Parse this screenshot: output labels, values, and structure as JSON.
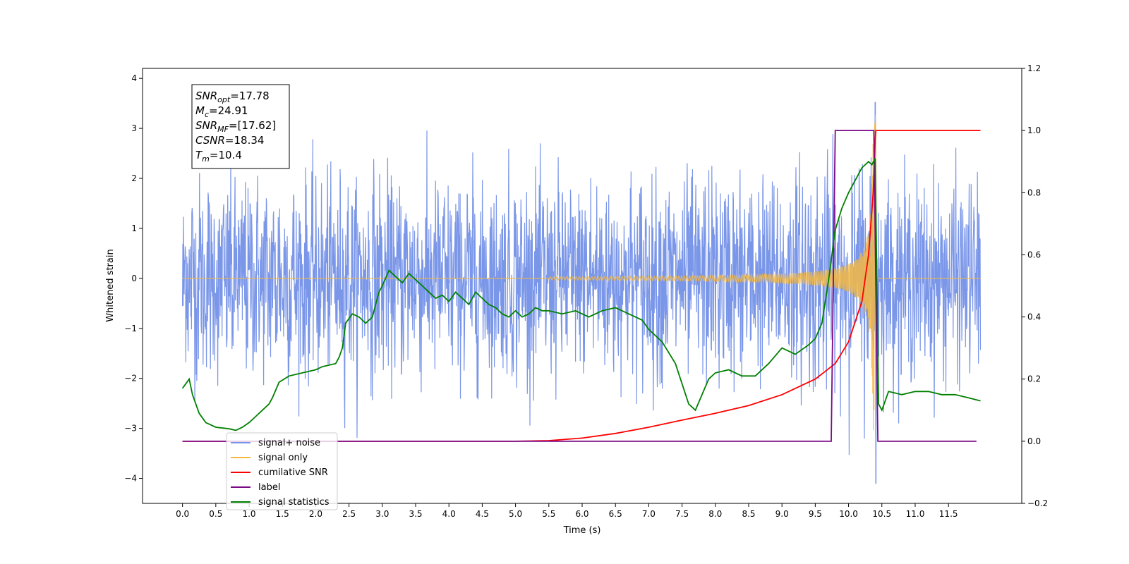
{
  "chart_data": {
    "type": "line",
    "xlabel": "Time (s)",
    "ylabel": "Whitened strain",
    "xlim": [
      -0.6,
      12.6
    ],
    "ylim_left": [
      -4.5,
      4.2
    ],
    "ylim_right": [
      -0.2,
      1.2
    ],
    "x_ticks": [
      "0.0",
      "0.5",
      "1.0",
      "1.5",
      "2.0",
      "2.5",
      "3.0",
      "3.5",
      "4.0",
      "4.5",
      "5.0",
      "5.5",
      "6.0",
      "6.5",
      "7.0",
      "7.5",
      "8.0",
      "8.5",
      "9.0",
      "9.5",
      "10.0",
      "10.5",
      "11.0",
      "11.5"
    ],
    "y_ticks_left": [
      "4",
      "3",
      "2",
      "1",
      "0",
      "−1",
      "−2",
      "−3",
      "−4"
    ],
    "y_ticks_right": [
      "1.2",
      "1.0",
      "0.8",
      "0.6",
      "0.4",
      "0.2",
      "0.0",
      "−0.2"
    ],
    "grid": false,
    "legend_position": "lower-left",
    "annotation": [
      {
        "base": "SNR",
        "sub": "opt",
        "value": "=17.78"
      },
      {
        "base": "M",
        "sub": "c",
        "value": "=24.91"
      },
      {
        "base": "SNR",
        "sub": "MF",
        "value": "=[17.62]"
      },
      {
        "base": "CSNR",
        "sub": "",
        "value": "=18.34"
      },
      {
        "base": "T",
        "sub": "m",
        "value": "=10.4"
      }
    ],
    "series": [
      {
        "name": "signal+ noise",
        "axis": "left",
        "color": "#7a96e8",
        "description_points": {
          "x_start": 0.0,
          "x_end": 11.98,
          "noise_sigma": 1.0,
          "peak": [
            10.4,
            3.52
          ],
          "trough": [
            10.4,
            -4.1
          ]
        }
      },
      {
        "name": "signal only",
        "axis": "left",
        "color": "#f5b942",
        "chirp": {
          "x_start": 0.0,
          "x_merger": 10.4,
          "x_end": 11.98,
          "peak_amplitude": 3.35
        }
      },
      {
        "name": "cumilative SNR",
        "axis": "right",
        "color": "#ff0000",
        "x": [
          0.0,
          5.0,
          5.5,
          6.0,
          6.5,
          7.0,
          7.5,
          8.0,
          8.5,
          9.0,
          9.5,
          9.8,
          10.0,
          10.2,
          10.3,
          10.37,
          10.4,
          10.41,
          11.98
        ],
        "y": [
          0.0,
          0.0,
          0.002,
          0.01,
          0.025,
          0.045,
          0.068,
          0.09,
          0.115,
          0.15,
          0.2,
          0.25,
          0.32,
          0.45,
          0.6,
          0.8,
          0.97,
          1.0,
          1.0
        ]
      },
      {
        "name": "label",
        "axis": "right",
        "color": "#7b0a87",
        "x": [
          0.0,
          9.74,
          9.8,
          10.38,
          10.44,
          11.92
        ],
        "y": [
          0.0,
          0.0,
          1.0,
          1.0,
          0.0,
          0.0
        ]
      },
      {
        "name": "signal statistics",
        "axis": "right",
        "color": "#008000",
        "x": [
          0.0,
          0.1,
          0.15,
          0.25,
          0.35,
          0.5,
          0.7,
          0.8,
          0.9,
          1.0,
          1.1,
          1.2,
          1.3,
          1.35,
          1.45,
          1.6,
          1.8,
          2.0,
          2.1,
          2.2,
          2.3,
          2.35,
          2.4,
          2.45,
          2.55,
          2.65,
          2.75,
          2.85,
          2.95,
          3.0,
          3.1,
          3.2,
          3.3,
          3.4,
          3.5,
          3.6,
          3.7,
          3.8,
          3.9,
          4.0,
          4.1,
          4.2,
          4.3,
          4.4,
          4.5,
          4.6,
          4.7,
          4.8,
          4.9,
          5.0,
          5.1,
          5.2,
          5.3,
          5.4,
          5.5,
          5.7,
          5.9,
          6.1,
          6.3,
          6.5,
          6.7,
          6.9,
          7.0,
          7.2,
          7.4,
          7.6,
          7.7,
          7.9,
          8.0,
          8.2,
          8.4,
          8.6,
          8.8,
          9.0,
          9.2,
          9.4,
          9.5,
          9.6,
          9.7,
          9.8,
          9.9,
          10.0,
          10.2,
          10.3,
          10.35,
          10.4,
          10.45,
          10.5,
          10.6,
          10.8,
          11.0,
          11.2,
          11.4,
          11.6,
          11.8,
          11.98
        ],
        "y": [
          0.17,
          0.2,
          0.15,
          0.09,
          0.06,
          0.045,
          0.04,
          0.035,
          0.045,
          0.06,
          0.08,
          0.1,
          0.12,
          0.14,
          0.19,
          0.21,
          0.22,
          0.23,
          0.24,
          0.245,
          0.25,
          0.27,
          0.3,
          0.38,
          0.41,
          0.4,
          0.38,
          0.4,
          0.48,
          0.5,
          0.55,
          0.53,
          0.51,
          0.54,
          0.52,
          0.5,
          0.48,
          0.46,
          0.47,
          0.45,
          0.48,
          0.46,
          0.44,
          0.48,
          0.46,
          0.44,
          0.43,
          0.41,
          0.4,
          0.42,
          0.4,
          0.41,
          0.43,
          0.42,
          0.42,
          0.41,
          0.42,
          0.4,
          0.42,
          0.43,
          0.41,
          0.39,
          0.36,
          0.32,
          0.25,
          0.12,
          0.1,
          0.2,
          0.22,
          0.23,
          0.21,
          0.21,
          0.25,
          0.3,
          0.28,
          0.31,
          0.33,
          0.38,
          0.52,
          0.68,
          0.75,
          0.8,
          0.88,
          0.9,
          0.89,
          0.91,
          0.12,
          0.1,
          0.16,
          0.15,
          0.16,
          0.16,
          0.15,
          0.15,
          0.14,
          0.13
        ]
      }
    ]
  }
}
